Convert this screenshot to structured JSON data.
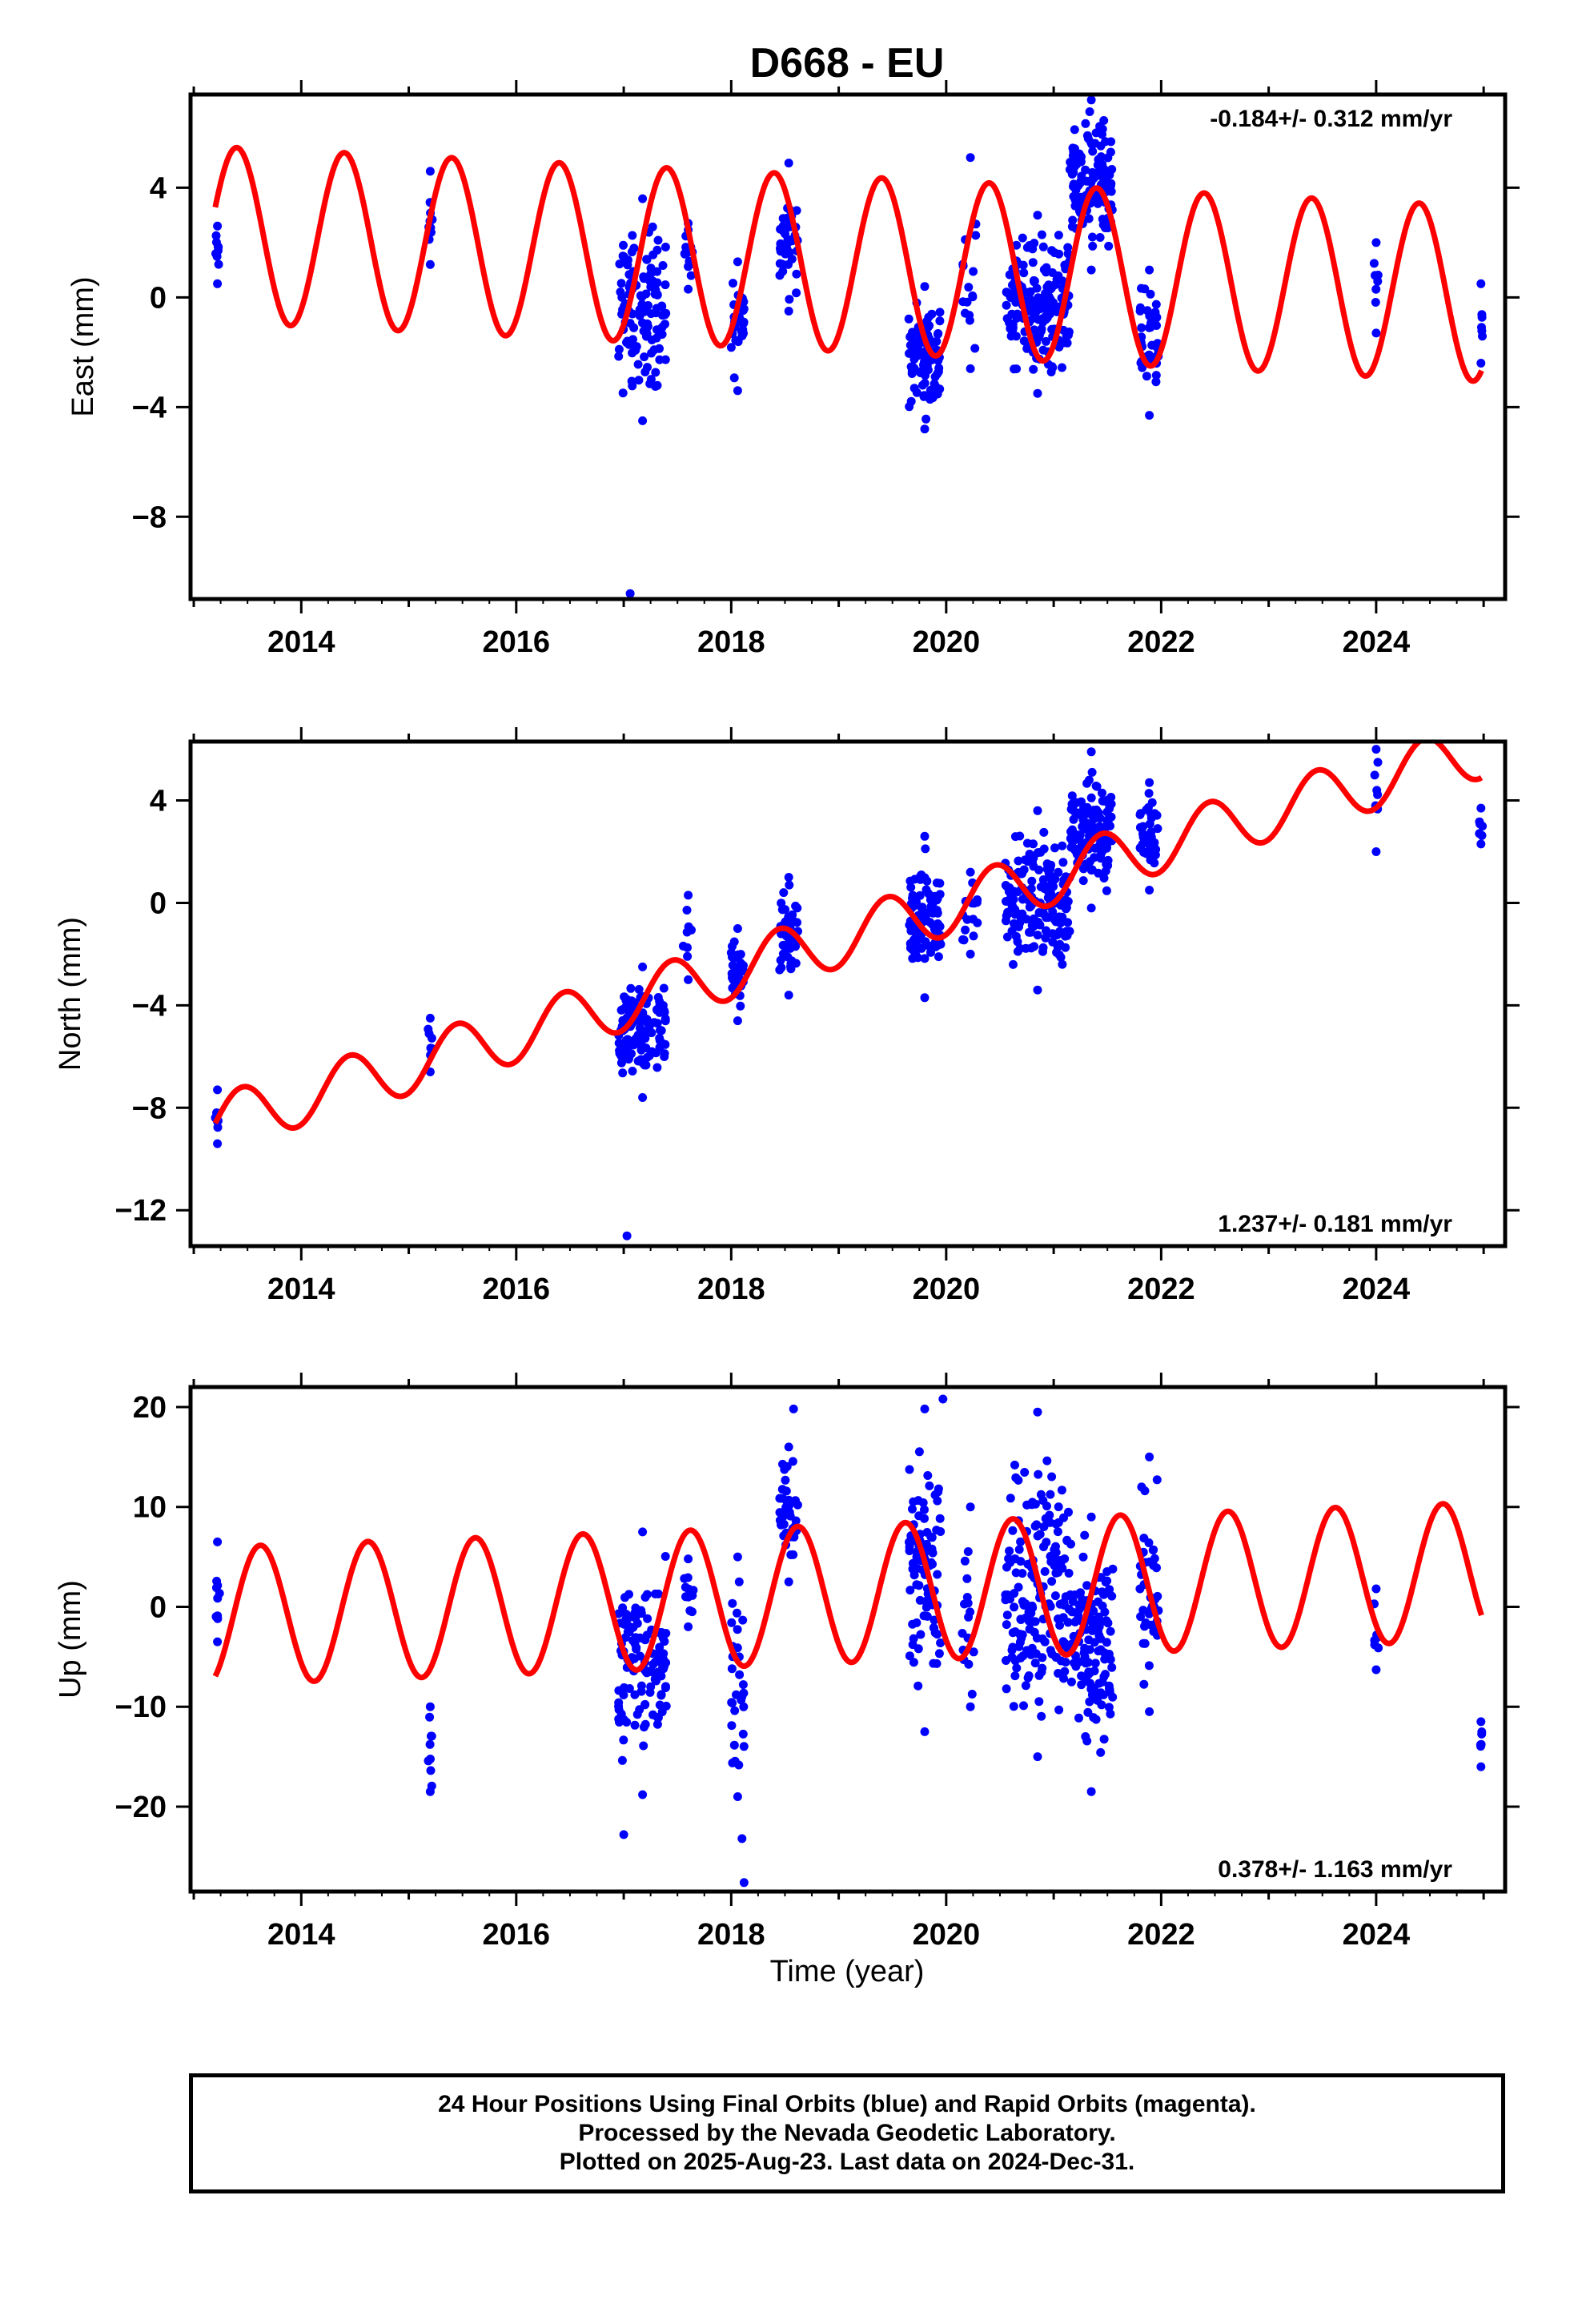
{
  "title": "D668 - EU",
  "xlabel": "Time (year)",
  "xticks": [
    "2014",
    "2016",
    "2018",
    "2020",
    "2022",
    "2024"
  ],
  "caption": {
    "line1": "24 Hour Positions Using Final Orbits (blue) and Rapid Orbits (magenta).",
    "line2": "Processed by the Nevada Geodetic Laboratory.",
    "line3": "Plotted on 2025-Aug-23. Last data on 2024-Dec-31."
  },
  "colors": {
    "points": "#0000ff",
    "model": "#ff0000",
    "frame": "#000000"
  },
  "chart_data": [
    {
      "type": "scatter",
      "ylabel": "East (mm)",
      "rate_label": "-0.184+/- 0.312 mm/yr",
      "xlim": [
        2012.97,
        2025.2
      ],
      "ylim": [
        -11.0,
        7.4
      ],
      "yticks": [
        4,
        0,
        -4,
        -8
      ],
      "ytick_labels": [
        "4",
        "0",
        "−4",
        "−8"
      ],
      "model": {
        "base": 2.3,
        "amp": 3.2,
        "peak_phase": 0.4,
        "rate": -0.184,
        "t0": 2013.2,
        "t_end": 2024.98
      },
      "clusters": [
        {
          "t0": 2013.2,
          "t1": 2013.24,
          "n": 8,
          "lo": 0.5,
          "hi": 2.6
        },
        {
          "t0": 2015.18,
          "t1": 2015.22,
          "n": 8,
          "lo": 1.2,
          "hi": 4.6
        },
        {
          "t0": 2016.95,
          "t1": 2017.4,
          "n": 120,
          "lo": -4.5,
          "hi": 3.6
        },
        {
          "t0": 2017.55,
          "t1": 2017.65,
          "n": 12,
          "lo": 0.3,
          "hi": 2.7
        },
        {
          "t0": 2018.0,
          "t1": 2018.12,
          "n": 30,
          "lo": -3.4,
          "hi": 1.3
        },
        {
          "t0": 2018.45,
          "t1": 2018.62,
          "n": 40,
          "lo": -0.5,
          "hi": 4.9
        },
        {
          "t0": 2019.65,
          "t1": 2019.95,
          "n": 90,
          "lo": -4.8,
          "hi": 0.4
        },
        {
          "t0": 2020.15,
          "t1": 2020.3,
          "n": 15,
          "lo": -2.6,
          "hi": 5.1
        },
        {
          "t0": 2020.55,
          "t1": 2021.15,
          "n": 170,
          "lo": -3.5,
          "hi": 3.0
        },
        {
          "t0": 2021.15,
          "t1": 2021.55,
          "n": 120,
          "lo": 1.0,
          "hi": 7.2
        },
        {
          "t0": 2021.8,
          "t1": 2021.98,
          "n": 40,
          "lo": -4.3,
          "hi": 1.0
        },
        {
          "t0": 2023.98,
          "t1": 2024.02,
          "n": 6,
          "lo": -1.3,
          "hi": 2.0
        },
        {
          "t0": 2024.96,
          "t1": 2024.99,
          "n": 5,
          "lo": -2.4,
          "hi": 0.5
        }
      ],
      "outliers": [
        [
          2017.06,
          -10.8
        ]
      ]
    },
    {
      "type": "scatter",
      "ylabel": "North (mm)",
      "rate_label": "1.237+/- 0.181 mm/yr",
      "xlim": [
        2012.97,
        2025.2
      ],
      "ylim": [
        -13.4,
        6.3
      ],
      "yticks": [
        4,
        0,
        -4,
        -8,
        -12
      ],
      "ytick_labels": [
        "4",
        "0",
        "−4",
        "−8",
        "−12"
      ],
      "model": {
        "base": -8.6,
        "amp": 1.1,
        "peak_phase": 0.45,
        "rate": 1.237,
        "t0": 2013.2,
        "t_end": 2024.98
      },
      "clusters": [
        {
          "t0": 2013.2,
          "t1": 2013.24,
          "n": 8,
          "lo": -9.4,
          "hi": -7.3
        },
        {
          "t0": 2015.18,
          "t1": 2015.22,
          "n": 8,
          "lo": -6.6,
          "hi": -4.5
        },
        {
          "t0": 2016.95,
          "t1": 2017.4,
          "n": 120,
          "lo": -7.6,
          "hi": -2.5
        },
        {
          "t0": 2017.55,
          "t1": 2017.65,
          "n": 8,
          "lo": -3.0,
          "hi": 0.3
        },
        {
          "t0": 2018.0,
          "t1": 2018.12,
          "n": 30,
          "lo": -4.6,
          "hi": -1.0
        },
        {
          "t0": 2018.45,
          "t1": 2018.62,
          "n": 40,
          "lo": -3.6,
          "hi": 1.0
        },
        {
          "t0": 2019.65,
          "t1": 2019.95,
          "n": 90,
          "lo": -3.7,
          "hi": 2.6
        },
        {
          "t0": 2020.15,
          "t1": 2020.3,
          "n": 15,
          "lo": -2.0,
          "hi": 1.2
        },
        {
          "t0": 2020.55,
          "t1": 2021.15,
          "n": 170,
          "lo": -3.4,
          "hi": 3.6
        },
        {
          "t0": 2021.15,
          "t1": 2021.55,
          "n": 120,
          "lo": -0.2,
          "hi": 5.9
        },
        {
          "t0": 2021.8,
          "t1": 2021.98,
          "n": 40,
          "lo": 0.5,
          "hi": 4.7
        },
        {
          "t0": 2023.98,
          "t1": 2024.02,
          "n": 6,
          "lo": 2.0,
          "hi": 6.0
        },
        {
          "t0": 2024.96,
          "t1": 2024.99,
          "n": 5,
          "lo": 2.3,
          "hi": 3.7
        }
      ],
      "outliers": [
        [
          2017.03,
          -13.0
        ]
      ]
    },
    {
      "type": "scatter",
      "ylabel": "Up (mm)",
      "rate_label": "0.378+/- 1.163 mm/yr",
      "xlim": [
        2012.97,
        2025.2
      ],
      "ylim": [
        -28.5,
        22.0
      ],
      "yticks": [
        20,
        10,
        0,
        -10,
        -20
      ],
      "ytick_labels": [
        "20",
        "10",
        "0",
        "−10",
        "−20"
      ],
      "model": {
        "base": -0.9,
        "amp": 6.9,
        "peak_phase": 0.62,
        "rate": 0.378,
        "t0": 2013.2,
        "t_end": 2024.98
      },
      "clusters": [
        {
          "t0": 2013.2,
          "t1": 2013.24,
          "n": 8,
          "lo": -3.5,
          "hi": 6.5
        },
        {
          "t0": 2015.18,
          "t1": 2015.22,
          "n": 8,
          "lo": -18.5,
          "hi": -10.0
        },
        {
          "t0": 2016.95,
          "t1": 2017.4,
          "n": 120,
          "lo": -18.8,
          "hi": 7.5
        },
        {
          "t0": 2017.55,
          "t1": 2017.65,
          "n": 10,
          "lo": -2.0,
          "hi": 4.8
        },
        {
          "t0": 2018.0,
          "t1": 2018.12,
          "n": 30,
          "lo": -19.0,
          "hi": 5.0
        },
        {
          "t0": 2018.45,
          "t1": 2018.62,
          "n": 40,
          "lo": 2.5,
          "hi": 16.0
        },
        {
          "t0": 2019.65,
          "t1": 2019.95,
          "n": 90,
          "lo": -12.5,
          "hi": 19.8
        },
        {
          "t0": 2020.15,
          "t1": 2020.3,
          "n": 15,
          "lo": -10.0,
          "hi": 10.0
        },
        {
          "t0": 2020.55,
          "t1": 2021.15,
          "n": 170,
          "lo": -15.0,
          "hi": 19.5
        },
        {
          "t0": 2021.15,
          "t1": 2021.55,
          "n": 120,
          "lo": -18.5,
          "hi": 9.0
        },
        {
          "t0": 2021.8,
          "t1": 2021.98,
          "n": 40,
          "lo": -10.5,
          "hi": 15.0
        },
        {
          "t0": 2023.98,
          "t1": 2024.02,
          "n": 6,
          "lo": -6.3,
          "hi": 1.8
        },
        {
          "t0": 2024.96,
          "t1": 2024.99,
          "n": 5,
          "lo": -16.0,
          "hi": -11.5
        }
      ],
      "outliers": [
        [
          2017.0,
          -22.8
        ],
        [
          2018.1,
          -23.2
        ],
        [
          2018.12,
          -27.6
        ],
        [
          2018.58,
          19.8
        ],
        [
          2019.97,
          20.8
        ]
      ]
    }
  ]
}
